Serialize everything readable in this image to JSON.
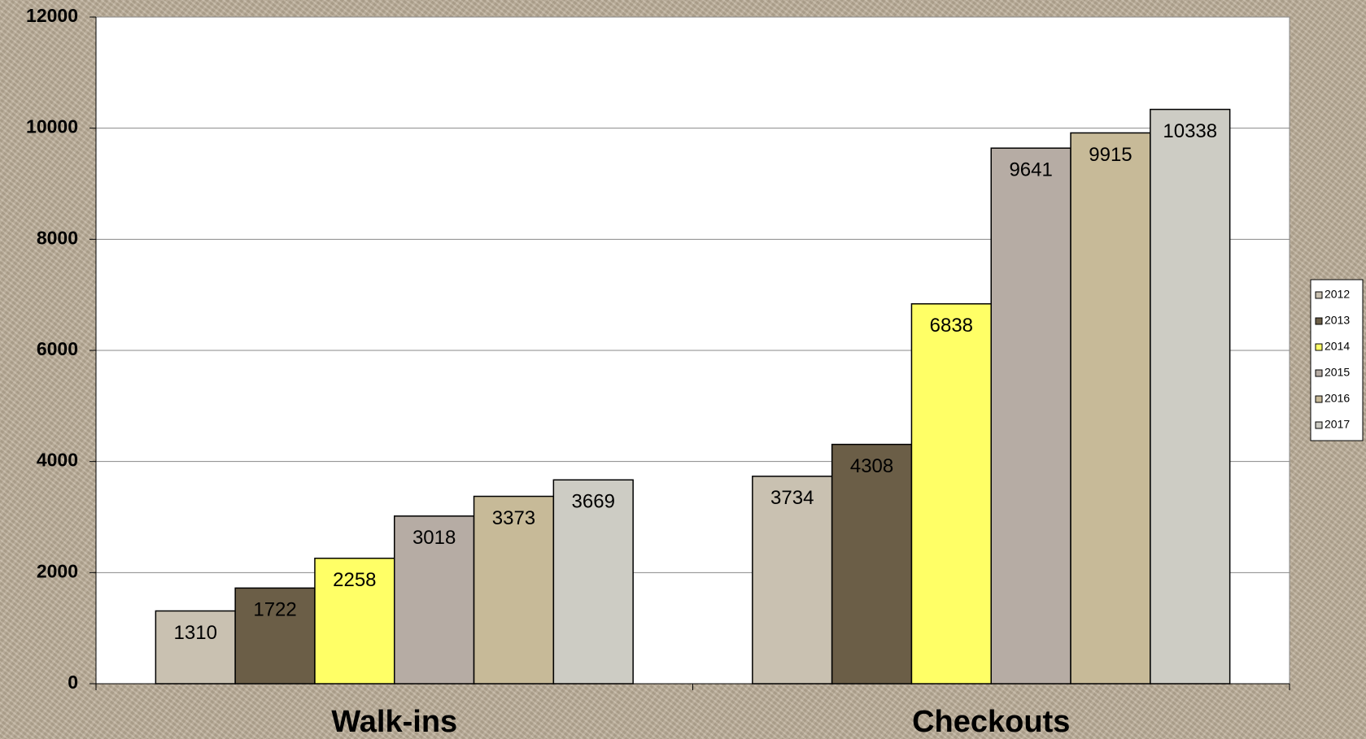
{
  "chart_data": {
    "type": "bar",
    "categories": [
      "Walk-ins",
      "Checkouts"
    ],
    "series": [
      {
        "name": "2012",
        "color": "#c9c1b1",
        "values": [
          1310,
          3734
        ]
      },
      {
        "name": "2013",
        "color": "#6b5e47",
        "values": [
          1722,
          4308
        ]
      },
      {
        "name": "2014",
        "color": "#ffff66",
        "values": [
          2258,
          6838
        ]
      },
      {
        "name": "2015",
        "color": "#b6aca4",
        "values": [
          3018,
          9641
        ]
      },
      {
        "name": "2016",
        "color": "#c7ba98",
        "values": [
          3373,
          9915
        ]
      },
      {
        "name": "2017",
        "color": "#cdccc4",
        "values": [
          3669,
          10338
        ]
      }
    ],
    "ylim": [
      0,
      12000
    ],
    "yticks": [
      0,
      2000,
      4000,
      6000,
      8000,
      10000,
      12000
    ],
    "grid": true,
    "legend": "right"
  }
}
